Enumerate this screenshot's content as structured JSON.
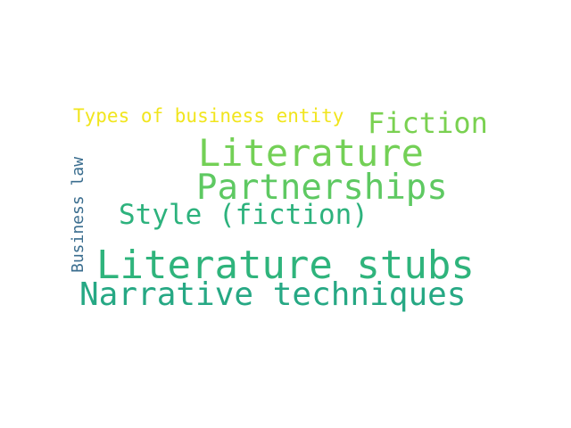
{
  "background_color": "#ffffff",
  "words": {
    "types_of_business_entity": {
      "text": "Types of business entity",
      "color": "#f1e51d"
    },
    "fiction": {
      "text": "Fiction",
      "color": "#7ad151"
    },
    "literature": {
      "text": "Literature",
      "color": "#73d056"
    },
    "partnerships": {
      "text": "Partnerships",
      "color": "#5ec962"
    },
    "style_fiction": {
      "text": "Style (fiction)",
      "color": "#2db27d"
    },
    "literature_stubs": {
      "text": "Literature stubs",
      "color": "#2fb47c"
    },
    "narrative_techniques": {
      "text": "Narrative techniques",
      "color": "#26a884"
    },
    "business_law": {
      "text": "Business law",
      "color": "#3b6e8f",
      "orientation": "vertical"
    }
  }
}
